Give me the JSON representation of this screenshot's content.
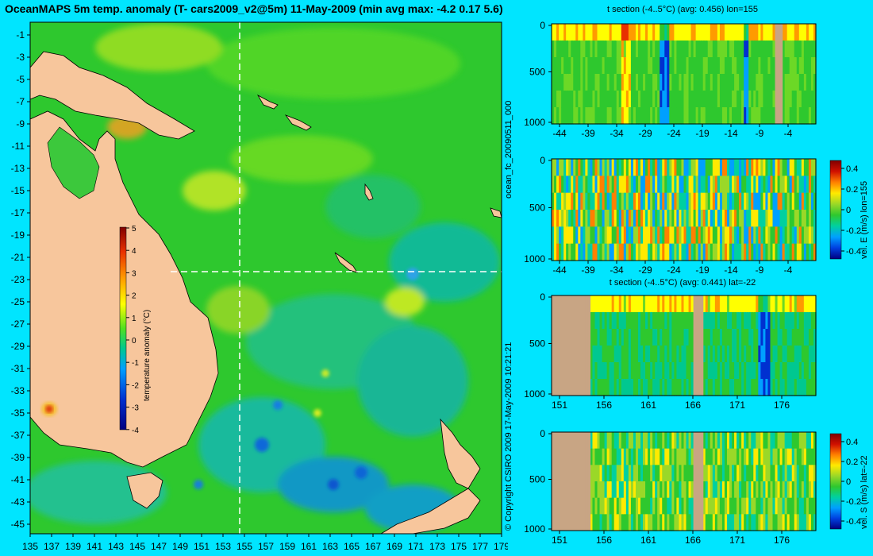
{
  "title": "OceanMAPS 5m temp. anomaly (T- cars2009_v2@5m) 11-May-2009 (min avg max: -4.2 0.17 5.6)",
  "map": {
    "lat_ticks": [
      "-1",
      "-3",
      "-5",
      "-7",
      "-9",
      "-11",
      "-13",
      "-15",
      "-17",
      "-19",
      "-21",
      "-23",
      "-25",
      "-27",
      "-29",
      "-31",
      "-33",
      "-35",
      "-37",
      "-39",
      "-41",
      "-43",
      "-45"
    ],
    "lon_ticks": [
      "135",
      "137",
      "139",
      "141",
      "143",
      "145",
      "147",
      "149",
      "151",
      "153",
      "155",
      "157",
      "159",
      "161",
      "163",
      "165",
      "167",
      "169",
      "171",
      "173",
      "175",
      "177",
      "179"
    ],
    "colorbar": {
      "label": "temperature anomaly (°C)",
      "ticks": [
        "5",
        "4",
        "3",
        "2",
        "1",
        "0",
        "-1",
        "-2",
        "-3",
        "-4"
      ]
    }
  },
  "panels": [
    {
      "title": "t section (-4..5°C) (avg: 0.456) lon=155",
      "y_ticks": [
        "0",
        "500",
        "1000"
      ],
      "x_ticks": [
        "-44",
        "-39",
        "-34",
        "-29",
        "-24",
        "-19",
        "-14",
        "-9",
        "-4"
      ]
    },
    {
      "title": "",
      "y_ticks": [
        "0",
        "500",
        "1000"
      ],
      "x_ticks": [
        "-44",
        "-39",
        "-34",
        "-29",
        "-24",
        "-19",
        "-14",
        "-9",
        "-4"
      ],
      "colorbar_ticks": [
        "0.4",
        "0.2",
        "0",
        "-0.2",
        "-0.4"
      ],
      "colorbar_label": "vel. E (m/s) lon=155"
    },
    {
      "title": "t section (-4..5°C) (avg: 0.441) lat=-22",
      "y_ticks": [
        "0",
        "500",
        "1000"
      ],
      "x_ticks": [
        "151",
        "156",
        "161",
        "166",
        "171",
        "176"
      ]
    },
    {
      "title": "",
      "y_ticks": [
        "0",
        "500",
        "1000"
      ],
      "x_ticks": [
        "151",
        "156",
        "161",
        "166",
        "171",
        "176"
      ],
      "colorbar_ticks": [
        "0.4",
        "0.2",
        "0",
        "-0.2",
        "-0.4"
      ],
      "colorbar_label": "vel. S (m/s) lat=-22"
    }
  ],
  "side_labels": {
    "run_id": "ocean_fc_20090511_000",
    "copyright": "© Copyright CSIRO 2009   17-May-2009 10:21:21"
  },
  "colors": {
    "background": "#00e5ff",
    "ocean_base": "#2ec82e",
    "land": "#f7c69c",
    "section_land": "#c8a584"
  }
}
